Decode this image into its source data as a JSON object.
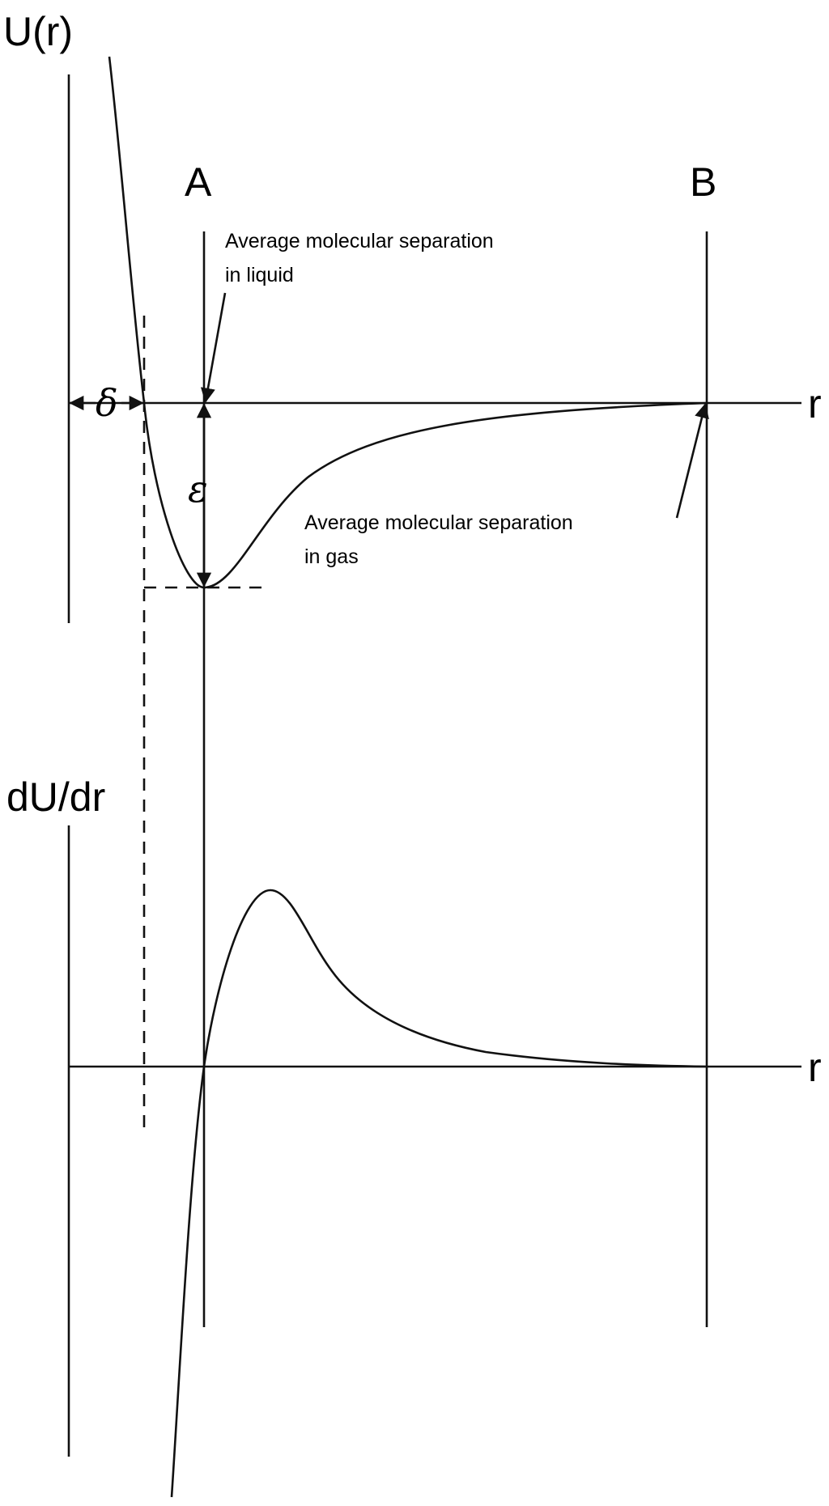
{
  "top_panel": {
    "y_axis_label": "U(r)",
    "x_axis_label": "r",
    "delta_symbol": "δ",
    "epsilon_symbol": "ε"
  },
  "bottom_panel": {
    "y_axis_label": "dU/dr",
    "x_axis_label": "r"
  },
  "markers": {
    "a_label": "A",
    "b_label": "B"
  },
  "annotations": {
    "liquid_line1": "Average molecular separation",
    "liquid_line2": "in liquid",
    "gas_line1": "Average molecular separation",
    "gas_line2": "in gas"
  }
}
